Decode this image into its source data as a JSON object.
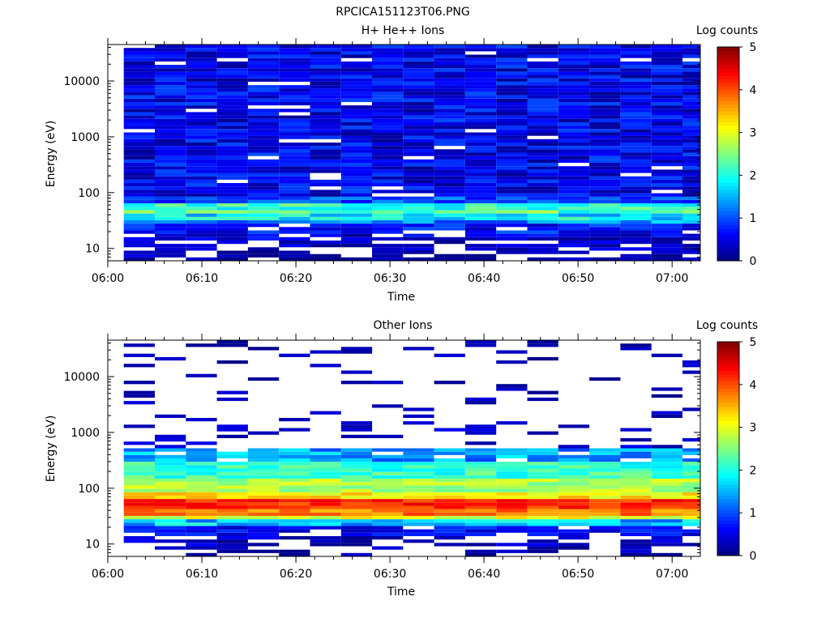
{
  "figure": {
    "filename": "RPCICA151123T06.PNG"
  },
  "chart_data": [
    {
      "type": "heatmap",
      "title": "H+ He++ Ions",
      "xlabel": "Time",
      "ylabel": "Energy (eV)",
      "x_ticks": [
        "06:00",
        "06:10",
        "06:20",
        "06:30",
        "06:40",
        "06:50",
        "07:00"
      ],
      "x_range_minutes": [
        0,
        63
      ],
      "y_scale": "log",
      "y_ticks": [
        "10",
        "100",
        "1000",
        "10000"
      ],
      "y_range": [
        6,
        45000
      ],
      "colorbar": {
        "label": "Log counts",
        "min": 0,
        "max": 5,
        "ticks": [
          "0",
          "1",
          "2",
          "3",
          "4",
          "5"
        ]
      },
      "sweep_start_minutes": [
        1.7,
        5.0,
        8.3,
        11.6,
        14.9,
        18.2,
        21.5,
        24.8,
        28.1,
        31.4,
        34.7,
        38.0,
        41.3,
        44.6,
        47.9,
        51.2,
        54.5,
        57.8,
        61.1
      ],
      "profile": [
        {
          "emin": 6,
          "emax": 9,
          "level": 0.2,
          "jitter": 0.3,
          "gap": 0.35
        },
        {
          "emin": 9,
          "emax": 13,
          "level": 0.3,
          "jitter": 0.35,
          "gap": 0.3
        },
        {
          "emin": 13,
          "emax": 19,
          "level": 0.45,
          "jitter": 0.35,
          "gap": 0.25
        },
        {
          "emin": 19,
          "emax": 26,
          "level": 0.7,
          "jitter": 0.4,
          "gap": 0.1
        },
        {
          "emin": 26,
          "emax": 32,
          "level": 1.3,
          "jitter": 0.45,
          "gap": 0.0
        },
        {
          "emin": 32,
          "emax": 40,
          "level": 1.8,
          "jitter": 0.5,
          "gap": 0.0
        },
        {
          "emin": 40,
          "emax": 50,
          "level": 2.3,
          "jitter": 0.55,
          "gap": 0.0
        },
        {
          "emin": 50,
          "emax": 62,
          "level": 2.1,
          "jitter": 0.45,
          "gap": 0.0
        },
        {
          "emin": 62,
          "emax": 90,
          "level": 1.0,
          "jitter": 0.4,
          "gap": 0.0
        },
        {
          "emin": 90,
          "emax": 45000,
          "level": 0.55,
          "jitter": 0.45,
          "gap": 0.04
        }
      ]
    },
    {
      "type": "heatmap",
      "title": "Other Ions",
      "xlabel": "Time",
      "ylabel": "Energy (eV)",
      "x_ticks": [
        "06:00",
        "06:10",
        "06:20",
        "06:30",
        "06:40",
        "06:50",
        "07:00"
      ],
      "x_range_minutes": [
        0,
        63
      ],
      "y_scale": "log",
      "y_ticks": [
        "10",
        "100",
        "1000",
        "10000"
      ],
      "y_range": [
        6,
        45000
      ],
      "colorbar": {
        "label": "Log counts",
        "min": 0,
        "max": 5,
        "ticks": [
          "0",
          "1",
          "2",
          "3",
          "4",
          "5"
        ]
      },
      "sweep_start_minutes": [
        1.7,
        5.0,
        8.3,
        11.6,
        14.9,
        18.2,
        21.5,
        24.8,
        28.1,
        31.4,
        34.7,
        38.0,
        41.3,
        44.6,
        47.9,
        51.2,
        54.5,
        57.8,
        61.1
      ],
      "profile": [
        {
          "emin": 6,
          "emax": 9,
          "level": 0.2,
          "jitter": 0.25,
          "gap": 0.6
        },
        {
          "emin": 9,
          "emax": 14,
          "level": 0.35,
          "jitter": 0.3,
          "gap": 0.45
        },
        {
          "emin": 14,
          "emax": 20,
          "level": 0.6,
          "jitter": 0.3,
          "gap": 0.3
        },
        {
          "emin": 20,
          "emax": 26,
          "level": 1.6,
          "jitter": 0.5,
          "gap": 0.0
        },
        {
          "emin": 26,
          "emax": 32,
          "level": 3.0,
          "jitter": 0.4,
          "gap": 0.0
        },
        {
          "emin": 32,
          "emax": 40,
          "level": 3.8,
          "jitter": 0.35,
          "gap": 0.0
        },
        {
          "emin": 40,
          "emax": 60,
          "level": 4.2,
          "jitter": 0.3,
          "gap": 0.0
        },
        {
          "emin": 60,
          "emax": 90,
          "level": 3.2,
          "jitter": 0.35,
          "gap": 0.0
        },
        {
          "emin": 90,
          "emax": 150,
          "level": 2.7,
          "jitter": 0.35,
          "gap": 0.0
        },
        {
          "emin": 150,
          "emax": 300,
          "level": 2.1,
          "jitter": 0.4,
          "gap": 0.02
        },
        {
          "emin": 300,
          "emax": 550,
          "level": 1.4,
          "jitter": 0.45,
          "gap": 0.15
        },
        {
          "emin": 550,
          "emax": 1400,
          "level": 0.35,
          "jitter": 0.2,
          "gap": 0.75
        },
        {
          "emin": 1400,
          "emax": 45000,
          "level": 0.25,
          "jitter": 0.2,
          "gap": 0.88
        }
      ]
    }
  ]
}
